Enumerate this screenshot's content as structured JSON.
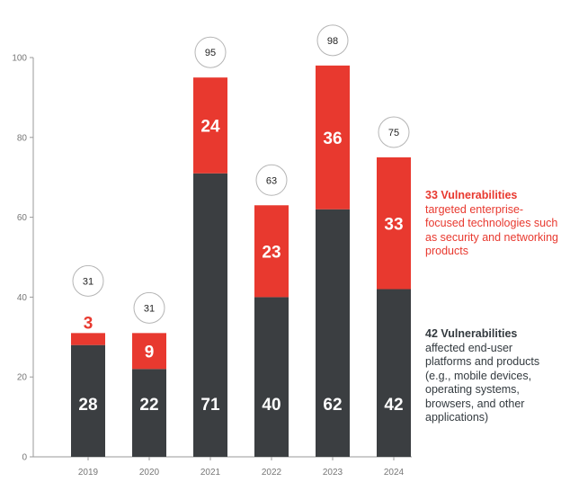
{
  "chart_data": {
    "type": "bar",
    "stacked": true,
    "categories": [
      "2019",
      "2020",
      "2021",
      "2022",
      "2023",
      "2024"
    ],
    "series": [
      {
        "values": [
          28,
          22,
          71,
          40,
          62,
          42
        ],
        "color": "#3b3e41"
      },
      {
        "values": [
          3,
          9,
          24,
          23,
          36,
          33
        ],
        "color": "#e8392f"
      }
    ],
    "totals": [
      31,
      31,
      95,
      63,
      98,
      75
    ],
    "ylim": [
      0,
      100
    ],
    "yticks": [
      0,
      20,
      40,
      60,
      80,
      100
    ],
    "grid": false,
    "annotations": {
      "enterprise": {
        "headline": "33 Vulnerabilities",
        "text": "targeted enterprise-focused technologies such as security and networking products",
        "color": "#e8392f"
      },
      "enduser": {
        "headline": "42 Vulnerabilities",
        "text": "affected end-user platforms and products (e.g., mobile devices, operating systems, browsers, and other applications)",
        "color": "#333a3f"
      }
    }
  }
}
